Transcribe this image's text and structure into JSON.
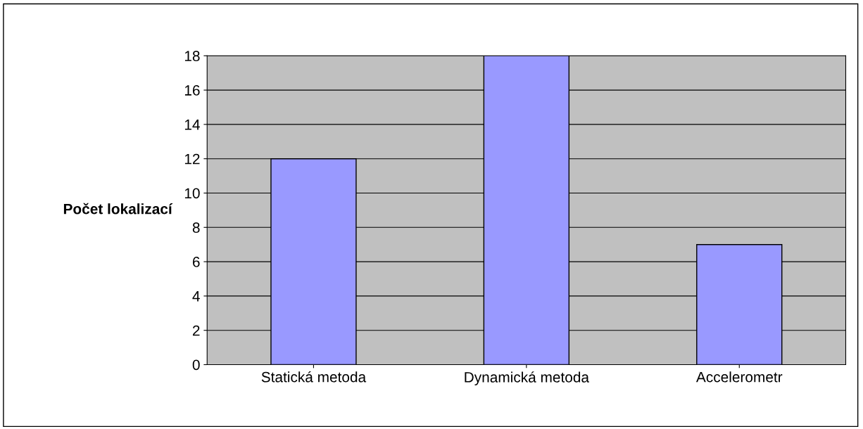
{
  "chart_data": {
    "type": "bar",
    "ylabel": "Počet lokalizací",
    "categories": [
      "Statická metoda",
      "Dynamická metoda",
      "Accelerometr"
    ],
    "values": [
      12,
      18,
      7
    ],
    "color": "#9999ff",
    "ylim": [
      0,
      18
    ],
    "yticks": [
      0,
      2,
      4,
      6,
      8,
      10,
      12,
      14,
      16,
      18
    ],
    "grid": "y",
    "legend": false
  }
}
